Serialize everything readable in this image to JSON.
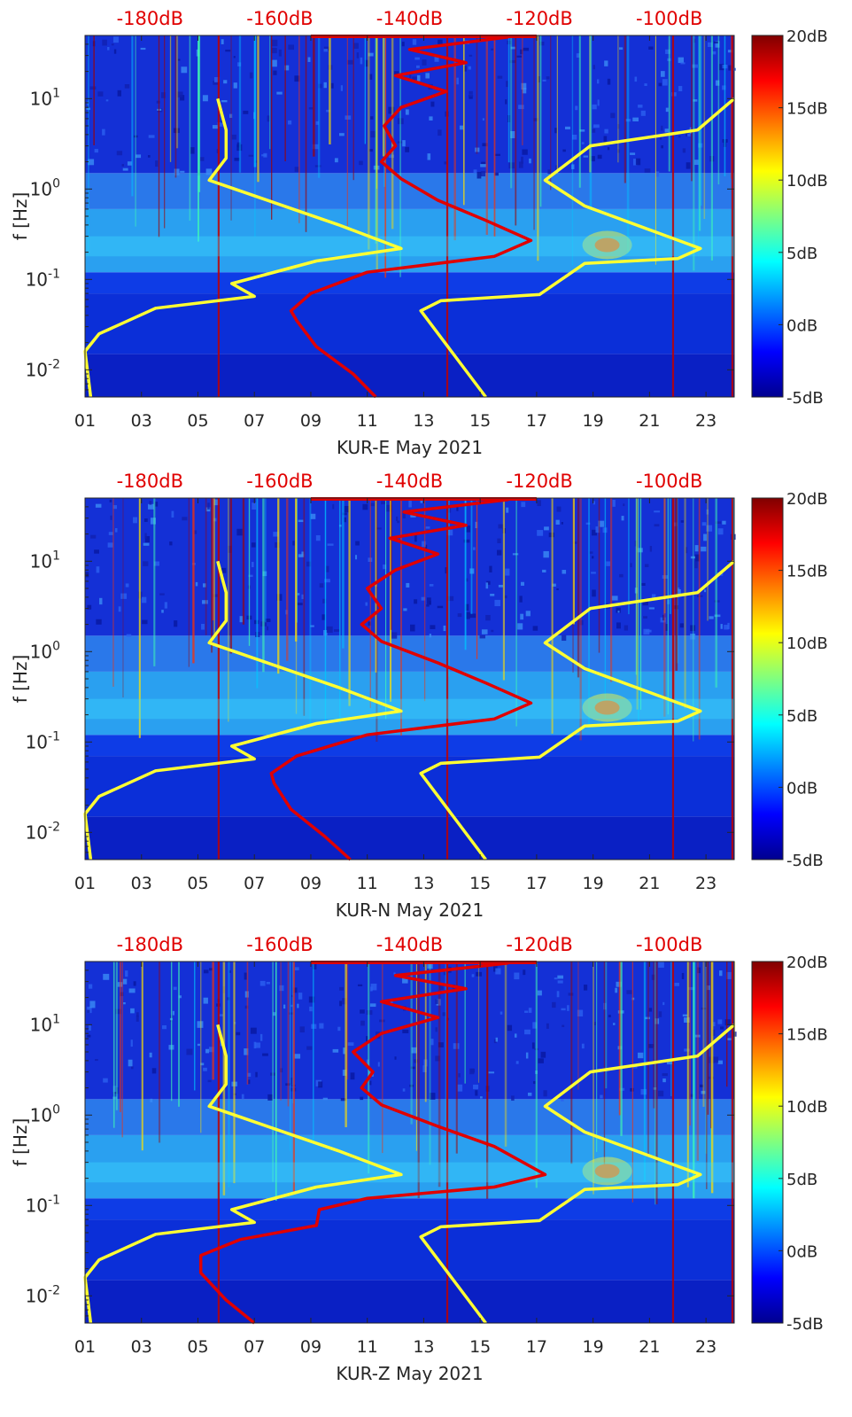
{
  "chart_data": [
    {
      "type": "heatmap",
      "title": "",
      "xlabel": "KUR-E May 2021",
      "ylabel": "f [Hz]",
      "x_ticks": [
        "01",
        "03",
        "05",
        "07",
        "09",
        "11",
        "13",
        "15",
        "17",
        "19",
        "21",
        "23"
      ],
      "y_ticks": [
        "10^-2",
        "10^-1",
        "10^0",
        "10^1"
      ],
      "top_ticks": [
        "-180dB",
        "-160dB",
        "-140dB",
        "-120dB",
        "-100dB"
      ],
      "xlim": [
        1,
        24
      ],
      "ylim_hz": [
        0.005,
        50
      ],
      "top_axis_lim_db": [
        -190,
        -90
      ],
      "colorbar": {
        "ticks": [
          "20dB",
          "15dB",
          "10dB",
          "5dB",
          "0dB",
          "-5dB"
        ],
        "range_db": [
          -5,
          20
        ],
        "colormap": "jet"
      },
      "noise_lines": [
        {
          "color": "#ffff33",
          "points": [
            [
              1.2,
              0.005
            ],
            [
              1.0,
              0.016
            ],
            [
              1.5,
              0.025
            ],
            [
              3.5,
              0.048
            ],
            [
              7.0,
              0.065
            ],
            [
              6.2,
              0.09
            ],
            [
              9.2,
              0.16
            ],
            [
              12.2,
              0.22
            ],
            [
              10.0,
              0.4
            ],
            [
              5.4,
              1.25
            ],
            [
              6.0,
              2.2
            ],
            [
              6.0,
              4.5
            ],
            [
              5.7,
              10.0
            ]
          ]
        },
        {
          "color": "#ffff33",
          "points": [
            [
              15.2,
              0.005
            ],
            [
              12.9,
              0.045
            ],
            [
              13.6,
              0.058
            ],
            [
              17.1,
              0.068
            ],
            [
              18.7,
              0.15
            ],
            [
              22.0,
              0.17
            ],
            [
              22.8,
              0.22
            ],
            [
              18.7,
              0.65
            ],
            [
              17.3,
              1.25
            ],
            [
              18.9,
              3.0
            ],
            [
              22.7,
              4.5
            ],
            [
              24.0,
              10.0
            ]
          ]
        }
      ],
      "psd_line": {
        "color": "#e00000",
        "points": [
          [
            11.3,
            0.005
          ],
          [
            10.5,
            0.009
          ],
          [
            9.2,
            0.018
          ],
          [
            8.5,
            0.035
          ],
          [
            8.3,
            0.045
          ],
          [
            9.0,
            0.07
          ],
          [
            11.0,
            0.12
          ],
          [
            15.5,
            0.18
          ],
          [
            16.8,
            0.27
          ],
          [
            15.2,
            0.45
          ],
          [
            13.5,
            0.75
          ],
          [
            12.2,
            1.3
          ],
          [
            11.5,
            2.0
          ],
          [
            12.0,
            3.0
          ],
          [
            11.6,
            5.0
          ],
          [
            12.2,
            8.0
          ],
          [
            13.8,
            12.0
          ],
          [
            12.0,
            18.0
          ],
          [
            14.5,
            25.0
          ],
          [
            12.5,
            35.0
          ],
          [
            16.0,
            48.0
          ]
        ]
      }
    },
    {
      "type": "heatmap",
      "title": "",
      "xlabel": "KUR-N May 2021",
      "ylabel": "f [Hz]",
      "x_ticks": [
        "01",
        "03",
        "05",
        "07",
        "09",
        "11",
        "13",
        "15",
        "17",
        "19",
        "21",
        "23"
      ],
      "y_ticks": [
        "10^-2",
        "10^-1",
        "10^0",
        "10^1"
      ],
      "top_ticks": [
        "-180dB",
        "-160dB",
        "-140dB",
        "-120dB",
        "-100dB"
      ],
      "xlim": [
        1,
        24
      ],
      "ylim_hz": [
        0.005,
        50
      ],
      "top_axis_lim_db": [
        -190,
        -90
      ],
      "colorbar": {
        "ticks": [
          "20dB",
          "15dB",
          "10dB",
          "5dB",
          "0dB",
          "-5dB"
        ],
        "range_db": [
          -5,
          20
        ],
        "colormap": "jet"
      },
      "noise_lines": [
        {
          "color": "#ffff33",
          "points": [
            [
              1.2,
              0.005
            ],
            [
              1.0,
              0.016
            ],
            [
              1.5,
              0.025
            ],
            [
              3.5,
              0.048
            ],
            [
              7.0,
              0.065
            ],
            [
              6.2,
              0.09
            ],
            [
              9.2,
              0.16
            ],
            [
              12.2,
              0.22
            ],
            [
              10.0,
              0.4
            ],
            [
              5.4,
              1.25
            ],
            [
              6.0,
              2.2
            ],
            [
              6.0,
              4.5
            ],
            [
              5.7,
              10.0
            ]
          ]
        },
        {
          "color": "#ffff33",
          "points": [
            [
              15.2,
              0.005
            ],
            [
              12.9,
              0.045
            ],
            [
              13.6,
              0.058
            ],
            [
              17.1,
              0.068
            ],
            [
              18.7,
              0.15
            ],
            [
              22.0,
              0.17
            ],
            [
              22.8,
              0.22
            ],
            [
              18.7,
              0.65
            ],
            [
              17.3,
              1.25
            ],
            [
              18.9,
              3.0
            ],
            [
              22.7,
              4.5
            ],
            [
              24.0,
              10.0
            ]
          ]
        }
      ],
      "psd_line": {
        "color": "#e00000",
        "points": [
          [
            10.4,
            0.005
          ],
          [
            9.5,
            0.009
          ],
          [
            8.3,
            0.018
          ],
          [
            7.7,
            0.035
          ],
          [
            7.6,
            0.045
          ],
          [
            8.5,
            0.07
          ],
          [
            11.0,
            0.12
          ],
          [
            15.5,
            0.18
          ],
          [
            16.8,
            0.27
          ],
          [
            15.2,
            0.45
          ],
          [
            13.5,
            0.75
          ],
          [
            11.5,
            1.3
          ],
          [
            10.8,
            2.0
          ],
          [
            11.5,
            3.0
          ],
          [
            11.0,
            5.0
          ],
          [
            12.0,
            8.0
          ],
          [
            13.5,
            12.0
          ],
          [
            11.8,
            18.0
          ],
          [
            14.5,
            25.0
          ],
          [
            12.3,
            35.0
          ],
          [
            16.0,
            48.0
          ]
        ]
      }
    },
    {
      "type": "heatmap",
      "title": "",
      "xlabel": "KUR-Z May 2021",
      "ylabel": "f [Hz]",
      "x_ticks": [
        "01",
        "03",
        "05",
        "07",
        "09",
        "11",
        "13",
        "15",
        "17",
        "19",
        "21",
        "23"
      ],
      "y_ticks": [
        "10^-2",
        "10^-1",
        "10^0",
        "10^1"
      ],
      "top_ticks": [
        "-180dB",
        "-160dB",
        "-140dB",
        "-120dB",
        "-100dB"
      ],
      "xlim": [
        1,
        24
      ],
      "ylim_hz": [
        0.005,
        50
      ],
      "top_axis_lim_db": [
        -190,
        -90
      ],
      "colorbar": {
        "ticks": [
          "20dB",
          "15dB",
          "10dB",
          "5dB",
          "0dB",
          "-5dB"
        ],
        "range_db": [
          -5,
          20
        ],
        "colormap": "jet"
      },
      "noise_lines": [
        {
          "color": "#ffff33",
          "points": [
            [
              1.2,
              0.005
            ],
            [
              1.0,
              0.016
            ],
            [
              1.5,
              0.025
            ],
            [
              3.5,
              0.048
            ],
            [
              7.0,
              0.065
            ],
            [
              6.2,
              0.09
            ],
            [
              9.2,
              0.16
            ],
            [
              12.2,
              0.22
            ],
            [
              10.0,
              0.4
            ],
            [
              5.4,
              1.25
            ],
            [
              6.0,
              2.2
            ],
            [
              6.0,
              4.5
            ],
            [
              5.7,
              10.0
            ]
          ]
        },
        {
          "color": "#ffff33",
          "points": [
            [
              15.2,
              0.005
            ],
            [
              12.9,
              0.045
            ],
            [
              13.6,
              0.058
            ],
            [
              17.1,
              0.068
            ],
            [
              18.7,
              0.15
            ],
            [
              22.0,
              0.17
            ],
            [
              22.8,
              0.22
            ],
            [
              18.7,
              0.65
            ],
            [
              17.3,
              1.25
            ],
            [
              18.9,
              3.0
            ],
            [
              22.7,
              4.5
            ],
            [
              24.0,
              10.0
            ]
          ]
        }
      ],
      "psd_line": {
        "color": "#e00000",
        "points": [
          [
            7.0,
            0.005
          ],
          [
            6.0,
            0.009
          ],
          [
            5.1,
            0.018
          ],
          [
            5.1,
            0.028
          ],
          [
            6.5,
            0.042
          ],
          [
            9.2,
            0.06
          ],
          [
            9.3,
            0.09
          ],
          [
            11.0,
            0.12
          ],
          [
            15.5,
            0.16
          ],
          [
            17.3,
            0.22
          ],
          [
            15.5,
            0.45
          ],
          [
            13.5,
            0.75
          ],
          [
            11.5,
            1.3
          ],
          [
            10.8,
            2.0
          ],
          [
            11.2,
            3.0
          ],
          [
            10.5,
            5.0
          ],
          [
            11.5,
            8.0
          ],
          [
            13.5,
            12.0
          ],
          [
            11.5,
            18.0
          ],
          [
            14.5,
            25.0
          ],
          [
            12.0,
            35.0
          ],
          [
            16.0,
            48.0
          ]
        ]
      }
    }
  ]
}
